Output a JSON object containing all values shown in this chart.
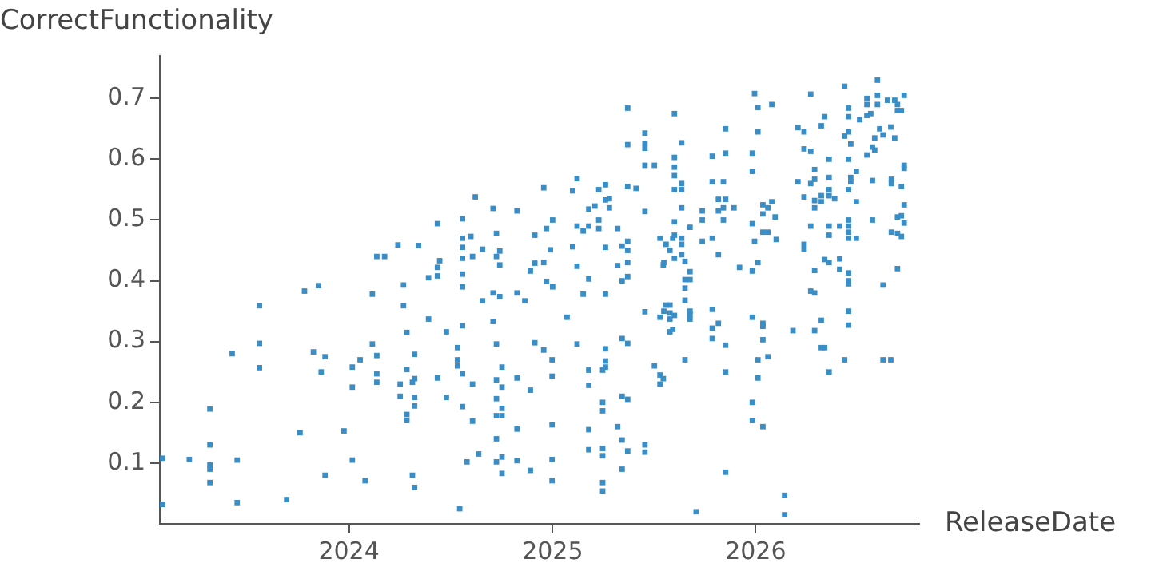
{
  "chart_data": {
    "type": "scatter",
    "xlabel": "ReleaseDate",
    "ylabel": "CorrectFunctionality",
    "xlim": [
      "2023-01-26",
      "2026-10-22"
    ],
    "xticks": [
      {
        "value": "2024",
        "label": "2024"
      },
      {
        "value": "2025",
        "label": "2025"
      },
      {
        "value": "2026",
        "label": "2026"
      }
    ],
    "ylim": [
      0,
      0.77
    ],
    "yticks": [
      0.1,
      0.2,
      0.3,
      0.4,
      0.5,
      0.6,
      0.7
    ],
    "grid": false,
    "legend": false,
    "marker": "square",
    "series": [
      {
        "color": "#3a8ec8",
        "x": [
          "2023-01-31",
          "2023-01-31",
          "2023-03-20",
          "2023-04-26",
          "2023-04-26",
          "2023-04-26",
          "2023-04-26",
          "2023-04-26",
          "2023-06-05",
          "2023-06-14",
          "2023-06-14",
          "2023-07-24",
          "2023-07-24",
          "2023-07-24",
          "2023-09-11",
          "2023-10-05",
          "2023-10-13",
          "2023-10-29",
          "2023-11-07",
          "2023-11-12",
          "2023-11-19",
          "2023-11-19",
          "2023-12-23",
          "2024-01-07",
          "2024-01-07",
          "2024-01-07",
          "2024-01-21",
          "2024-01-30",
          "2024-02-12",
          "2024-02-12",
          "2024-02-20",
          "2024-02-20",
          "2024-02-20",
          "2024-02-20",
          "2024-03-05",
          "2024-03-29",
          "2024-04-02",
          "2024-04-02",
          "2024-04-08",
          "2024-04-08",
          "2024-04-14",
          "2024-04-14",
          "2024-04-14",
          "2024-04-14",
          "2024-04-24",
          "2024-04-24",
          "2024-04-28",
          "2024-04-28",
          "2024-04-28",
          "2024-04-28",
          "2024-04-28",
          "2024-05-05",
          "2024-05-23",
          "2024-05-23",
          "2024-06-08",
          "2024-06-08",
          "2024-06-08",
          "2024-06-08",
          "2024-06-12",
          "2024-06-24",
          "2024-06-24",
          "2024-07-14",
          "2024-07-14",
          "2024-07-14",
          "2024-07-18",
          "2024-07-23",
          "2024-07-23",
          "2024-07-23",
          "2024-07-23",
          "2024-07-23",
          "2024-07-23",
          "2024-07-23",
          "2024-07-23",
          "2024-07-23",
          "2024-07-31",
          "2024-08-07",
          "2024-08-10",
          "2024-08-10",
          "2024-08-10",
          "2024-08-15",
          "2024-08-21",
          "2024-08-28",
          "2024-08-28",
          "2024-09-16",
          "2024-09-16",
          "2024-09-16",
          "2024-09-22",
          "2024-09-22",
          "2024-09-22",
          "2024-09-22",
          "2024-09-22",
          "2024-09-22",
          "2024-09-22",
          "2024-09-22",
          "2024-09-28",
          "2024-09-28",
          "2024-09-28",
          "2024-10-02",
          "2024-10-02",
          "2024-10-02",
          "2024-10-02",
          "2024-10-02",
          "2024-10-02",
          "2024-10-29",
          "2024-10-29",
          "2024-10-29",
          "2024-10-29",
          "2024-10-29",
          "2024-11-12",
          "2024-11-22",
          "2024-11-22",
          "2024-11-22",
          "2024-11-30",
          "2024-11-30",
          "2024-11-30",
          "2024-12-16",
          "2024-12-16",
          "2024-12-16",
          "2024-12-21",
          "2024-12-21",
          "2024-12-28",
          "2024-12-31",
          "2024-12-31",
          "2024-12-31",
          "2024-12-31",
          "2024-12-31",
          "2025-01-01",
          "2025-01-01",
          "2025-01-27",
          "2025-02-06",
          "2025-02-06",
          "2025-02-14",
          "2025-02-14",
          "2025-02-14",
          "2025-02-14",
          "2025-02-25",
          "2025-02-25",
          "2025-03-07",
          "2025-03-07",
          "2025-03-07",
          "2025-03-07",
          "2025-03-07",
          "2025-03-07",
          "2025-03-07",
          "2025-03-18",
          "2025-03-25",
          "2025-03-25",
          "2025-03-25",
          "2025-04-01",
          "2025-04-01",
          "2025-04-01",
          "2025-04-01",
          "2025-04-01",
          "2025-04-01",
          "2025-04-01",
          "2025-04-06",
          "2025-04-06",
          "2025-04-06",
          "2025-04-06",
          "2025-04-06",
          "2025-04-06",
          "2025-04-06",
          "2025-04-13",
          "2025-04-13",
          "2025-04-28",
          "2025-04-28",
          "2025-04-28",
          "2025-05-06",
          "2025-05-06",
          "2025-05-06",
          "2025-05-06",
          "2025-05-06",
          "2025-05-06",
          "2025-05-16",
          "2025-05-16",
          "2025-05-16",
          "2025-05-16",
          "2025-05-16",
          "2025-05-16",
          "2025-05-16",
          "2025-05-16",
          "2025-05-16",
          "2025-05-16",
          "2025-05-31",
          "2025-06-16",
          "2025-06-16",
          "2025-06-16",
          "2025-06-16",
          "2025-06-16",
          "2025-06-16",
          "2025-06-16",
          "2025-06-16",
          "2025-07-03",
          "2025-07-03",
          "2025-07-13",
          "2025-07-13",
          "2025-07-13",
          "2025-07-13",
          "2025-07-19",
          "2025-07-19",
          "2025-07-20",
          "2025-07-20",
          "2025-07-24",
          "2025-07-24",
          "2025-07-31",
          "2025-07-31",
          "2025-07-31",
          "2025-07-31",
          "2025-07-31",
          "2025-08-05",
          "2025-08-05",
          "2025-08-08",
          "2025-08-08",
          "2025-08-08",
          "2025-08-08",
          "2025-08-08",
          "2025-08-08",
          "2025-08-08",
          "2025-08-08",
          "2025-08-08",
          "2025-08-21",
          "2025-08-21",
          "2025-08-21",
          "2025-08-21",
          "2025-08-21",
          "2025-08-21",
          "2025-08-21",
          "2025-08-27",
          "2025-08-27",
          "2025-08-27",
          "2025-08-27",
          "2025-08-27",
          "2025-09-05",
          "2025-09-05",
          "2025-09-05",
          "2025-09-05",
          "2025-09-05",
          "2025-09-05",
          "2025-09-16",
          "2025-09-27",
          "2025-09-27",
          "2025-09-27",
          "2025-10-15",
          "2025-10-15",
          "2025-10-15",
          "2025-10-15",
          "2025-10-15",
          "2025-10-15",
          "2025-10-26",
          "2025-10-26",
          "2025-10-26",
          "2025-10-26",
          "2025-11-04",
          "2025-11-04",
          "2025-11-04",
          "2025-11-08",
          "2025-11-08",
          "2025-11-08",
          "2025-11-08",
          "2025-11-08",
          "2025-11-08",
          "2025-11-23",
          "2025-12-03",
          "2025-12-26",
          "2025-12-26",
          "2025-12-26",
          "2025-12-26",
          "2025-12-26",
          "2025-12-26",
          "2025-12-26",
          "2025-12-30",
          "2025-12-30",
          "2026-01-05",
          "2026-01-05",
          "2026-01-05",
          "2026-01-05",
          "2026-01-05",
          "2026-01-14",
          "2026-01-14",
          "2026-01-14",
          "2026-01-14",
          "2026-01-14",
          "2026-01-14",
          "2026-01-14",
          "2026-01-23",
          "2026-01-23",
          "2026-01-23",
          "2026-01-30",
          "2026-01-30",
          "2026-02-05",
          "2026-02-07",
          "2026-02-22",
          "2026-02-22",
          "2026-03-09",
          "2026-03-18",
          "2026-03-18",
          "2026-03-29",
          "2026-03-29",
          "2026-03-29",
          "2026-03-29",
          "2026-03-29",
          "2026-04-10",
          "2026-04-10",
          "2026-04-10",
          "2026-04-10",
          "2026-04-10",
          "2026-04-17",
          "2026-04-17",
          "2026-04-17",
          "2026-04-17",
          "2026-04-17",
          "2026-04-17",
          "2026-04-17",
          "2026-04-29",
          "2026-04-29",
          "2026-04-29",
          "2026-04-29",
          "2026-04-29",
          "2026-05-05",
          "2026-05-05",
          "2026-05-05",
          "2026-05-13",
          "2026-05-13",
          "2026-05-13",
          "2026-05-13",
          "2026-05-13",
          "2026-05-13",
          "2026-05-13",
          "2026-05-13",
          "2026-05-23",
          "2026-06-01",
          "2026-06-01",
          "2026-06-01",
          "2026-06-10",
          "2026-06-10",
          "2026-06-10",
          "2026-06-17",
          "2026-06-17",
          "2026-06-17",
          "2026-06-17",
          "2026-06-17",
          "2026-06-17",
          "2026-06-17",
          "2026-06-17",
          "2026-06-17",
          "2026-06-17",
          "2026-06-17",
          "2026-06-17",
          "2026-06-17",
          "2026-06-17",
          "2026-06-21",
          "2026-06-21",
          "2026-06-21",
          "2026-07-01",
          "2026-07-01",
          "2026-07-01",
          "2026-07-07",
          "2026-07-20",
          "2026-07-20",
          "2026-07-20",
          "2026-07-20",
          "2026-07-27",
          "2026-07-30",
          "2026-07-30",
          "2026-07-30",
          "2026-08-03",
          "2026-08-03",
          "2026-08-08",
          "2026-08-08",
          "2026-08-08",
          "2026-08-12",
          "2026-08-18",
          "2026-08-18",
          "2026-08-18",
          "2026-08-26",
          "2026-09-01",
          "2026-09-01",
          "2026-09-02",
          "2026-09-02",
          "2026-09-02",
          "2026-09-08",
          "2026-09-08",
          "2026-09-13",
          "2026-09-13",
          "2026-09-13",
          "2026-09-13",
          "2026-09-13",
          "2026-09-20",
          "2026-09-20",
          "2026-09-20",
          "2026-09-20",
          "2026-09-25",
          "2026-09-25",
          "2026-09-25",
          "2026-09-25",
          "2026-09-25"
        ],
        "values": [
          0.108,
          0.032,
          0.106,
          0.189,
          0.13,
          0.097,
          0.09,
          0.068,
          0.28,
          0.105,
          0.035,
          0.359,
          0.297,
          0.257,
          0.04,
          0.15,
          0.383,
          0.283,
          0.392,
          0.25,
          0.275,
          0.08,
          0.153,
          0.258,
          0.225,
          0.105,
          0.27,
          0.071,
          0.378,
          0.296,
          0.44,
          0.277,
          0.247,
          0.233,
          0.44,
          0.459,
          0.23,
          0.21,
          0.393,
          0.359,
          0.254,
          0.18,
          0.17,
          0.315,
          0.08,
          0.233,
          0.279,
          0.239,
          0.208,
          0.194,
          0.06,
          0.458,
          0.337,
          0.405,
          0.494,
          0.422,
          0.408,
          0.24,
          0.433,
          0.316,
          0.208,
          0.29,
          0.27,
          0.26,
          0.025,
          0.502,
          0.47,
          0.455,
          0.437,
          0.411,
          0.39,
          0.326,
          0.247,
          0.193,
          0.102,
          0.473,
          0.44,
          0.23,
          0.169,
          0.538,
          0.115,
          0.452,
          0.367,
          0.519,
          0.38,
          0.333,
          0.44,
          0.478,
          0.296,
          0.178,
          0.206,
          0.14,
          0.102,
          0.237,
          0.426,
          0.449,
          0.374,
          0.258,
          0.225,
          0.11,
          0.083,
          0.19,
          0.178,
          0.515,
          0.38,
          0.24,
          0.156,
          0.104,
          0.367,
          0.416,
          0.22,
          0.088,
          0.475,
          0.429,
          0.298,
          0.553,
          0.286,
          0.43,
          0.486,
          0.399,
          0.451,
          0.243,
          0.163,
          0.27,
          0.106,
          0.071,
          0.39,
          0.5,
          0.34,
          0.548,
          0.456,
          0.568,
          0.49,
          0.424,
          0.296,
          0.482,
          0.378,
          0.518,
          0.49,
          0.403,
          0.253,
          0.228,
          0.155,
          0.122,
          0.523,
          0.55,
          0.5,
          0.486,
          0.253,
          0.2,
          0.186,
          0.124,
          0.112,
          0.068,
          0.054,
          0.558,
          0.533,
          0.455,
          0.378,
          0.288,
          0.268,
          0.258,
          0.535,
          0.52,
          0.486,
          0.425,
          0.16,
          0.457,
          0.4,
          0.305,
          0.21,
          0.138,
          0.09,
          0.684,
          0.624,
          0.555,
          0.465,
          0.45,
          0.43,
          0.407,
          0.297,
          0.205,
          0.12,
          0.552,
          0.643,
          0.626,
          0.618,
          0.59,
          0.514,
          0.349,
          0.13,
          0.118,
          0.59,
          0.26,
          0.47,
          0.245,
          0.23,
          0.34,
          0.426,
          0.239,
          0.35,
          0.43,
          0.36,
          0.46,
          0.45,
          0.36,
          0.347,
          0.316,
          0.337,
          0.47,
          0.32,
          0.675,
          0.603,
          0.587,
          0.573,
          0.55,
          0.497,
          0.475,
          0.437,
          0.343,
          0.627,
          0.56,
          0.55,
          0.52,
          0.47,
          0.443,
          0.46,
          0.432,
          0.402,
          0.388,
          0.368,
          0.27,
          0.415,
          0.35,
          0.345,
          0.337,
          0.402,
          0.488,
          0.02,
          0.515,
          0.465,
          0.5,
          0.47,
          0.605,
          0.563,
          0.353,
          0.322,
          0.305,
          0.534,
          0.443,
          0.515,
          0.33,
          0.563,
          0.52,
          0.5,
          0.65,
          0.61,
          0.294,
          0.25,
          0.085,
          0.534,
          0.52,
          0.422,
          0.416,
          0.494,
          0.61,
          0.58,
          0.34,
          0.2,
          0.17,
          0.708,
          0.465,
          0.685,
          0.645,
          0.43,
          0.24,
          0.27,
          0.525,
          0.51,
          0.48,
          0.33,
          0.325,
          0.303,
          0.16,
          0.52,
          0.48,
          0.275,
          0.69,
          0.53,
          0.505,
          0.468,
          0.047,
          0.015,
          0.318,
          0.652,
          0.563,
          0.645,
          0.617,
          0.538,
          0.46,
          0.452,
          0.707,
          0.613,
          0.56,
          0.49,
          0.383,
          0.583,
          0.567,
          0.532,
          0.52,
          0.417,
          0.38,
          0.318,
          0.655,
          0.54,
          0.53,
          0.335,
          0.29,
          0.67,
          0.435,
          0.29,
          0.6,
          0.57,
          0.55,
          0.54,
          0.49,
          0.475,
          0.43,
          0.25,
          0.535,
          0.49,
          0.436,
          0.419,
          0.72,
          0.638,
          0.27,
          0.684,
          0.67,
          0.645,
          0.6,
          0.55,
          0.5,
          0.49,
          0.48,
          0.47,
          0.413,
          0.4,
          0.395,
          0.35,
          0.327,
          0.625,
          0.57,
          0.563,
          0.58,
          0.53,
          0.47,
          0.665,
          0.7,
          0.69,
          0.672,
          0.607,
          0.675,
          0.565,
          0.62,
          0.5,
          0.635,
          0.615,
          0.73,
          0.705,
          0.69,
          0.65,
          0.64,
          0.393,
          0.27,
          0.697,
          0.653,
          0.27,
          0.567,
          0.56,
          0.48,
          0.697,
          0.635,
          0.69,
          0.68,
          0.505,
          0.478,
          0.42,
          0.68,
          0.555,
          0.507,
          0.473,
          0.705,
          0.59,
          0.585,
          0.525,
          0.495
        ]
      }
    ]
  }
}
